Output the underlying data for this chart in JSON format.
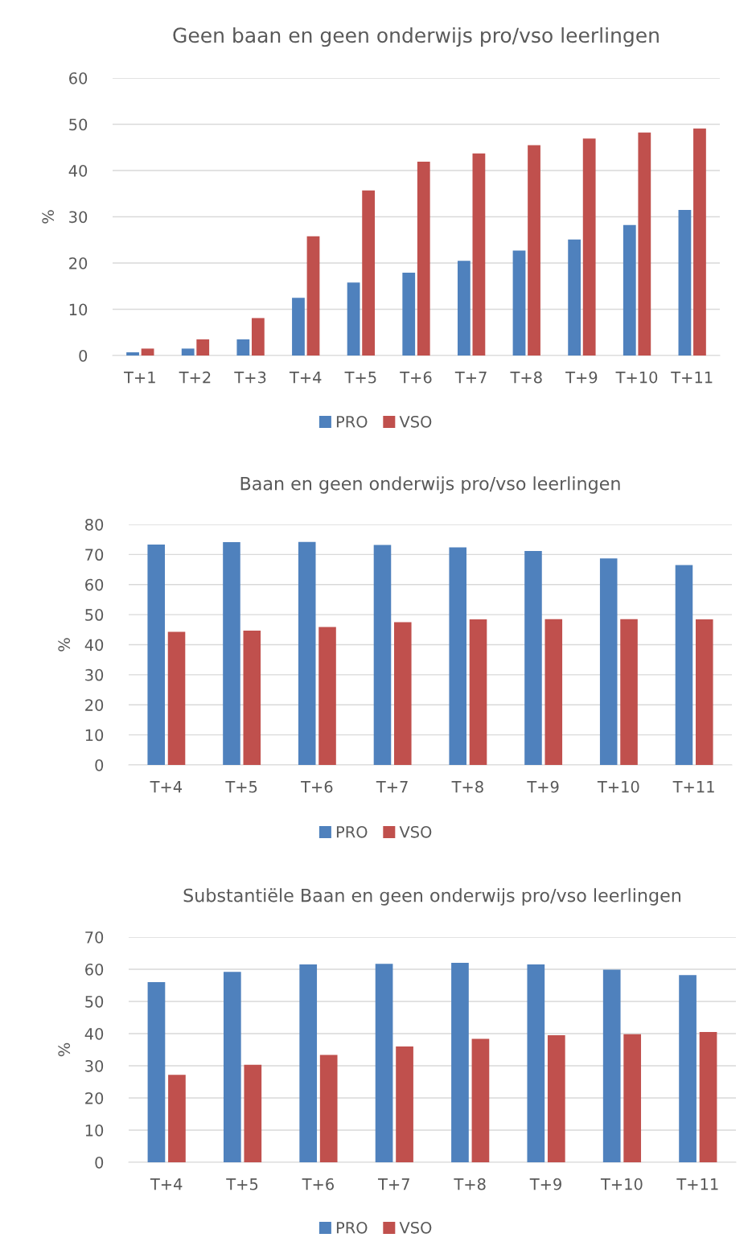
{
  "chart_data": [
    {
      "type": "bar",
      "title": "Geen baan en geen onderwijs pro/vso leerlingen",
      "ylabel": "%",
      "categories": [
        "T+1",
        "T+2",
        "T+3",
        "T+4",
        "T+5",
        "T+6",
        "T+7",
        "T+8",
        "T+9",
        "T+10",
        "T+11"
      ],
      "series": [
        {
          "name": "PRO",
          "color": "#4f81bd",
          "values": [
            0.7,
            1.5,
            3.5,
            12.5,
            15.8,
            17.9,
            20.5,
            22.7,
            25.1,
            28.2,
            31.5
          ]
        },
        {
          "name": "VSO",
          "color": "#c0504d",
          "values": [
            1.5,
            3.5,
            8.1,
            25.8,
            35.7,
            41.9,
            43.7,
            45.5,
            46.9,
            48.2,
            49.1
          ]
        }
      ],
      "ylim": [
        0,
        60
      ],
      "yticks": [
        0,
        10,
        20,
        30,
        40,
        50,
        60
      ],
      "grid": "y",
      "legend": "bottom"
    },
    {
      "type": "bar",
      "title": "Baan en geen onderwijs pro/vso leerlingen",
      "ylabel": "%",
      "categories": [
        "T+4",
        "T+5",
        "T+6",
        "T+7",
        "T+8",
        "T+9",
        "T+10",
        "T+11"
      ],
      "series": [
        {
          "name": "PRO",
          "color": "#4f81bd",
          "values": [
            73.3,
            74.1,
            74.2,
            73.2,
            72.4,
            71.2,
            68.7,
            66.5
          ]
        },
        {
          "name": "VSO",
          "color": "#c0504d",
          "values": [
            44.3,
            44.7,
            45.9,
            47.5,
            48.4,
            48.5,
            48.5,
            48.4
          ]
        }
      ],
      "ylim": [
        0,
        80
      ],
      "yticks": [
        0,
        10,
        20,
        30,
        40,
        50,
        60,
        70,
        80
      ],
      "grid": "y",
      "legend": "bottom"
    },
    {
      "type": "bar",
      "title": "Substantiële Baan en geen onderwijs pro/vso leerlingen",
      "ylabel": "%",
      "categories": [
        "T+4",
        "T+5",
        "T+6",
        "T+7",
        "T+8",
        "T+9",
        "T+10",
        "T+11"
      ],
      "series": [
        {
          "name": "PRO",
          "color": "#4f81bd",
          "values": [
            56.0,
            59.2,
            61.5,
            61.7,
            62.0,
            61.5,
            59.9,
            58.2
          ]
        },
        {
          "name": "VSO",
          "color": "#c0504d",
          "values": [
            27.2,
            30.3,
            33.4,
            36.0,
            38.4,
            39.5,
            39.8,
            40.5
          ]
        }
      ],
      "ylim": [
        0,
        70
      ],
      "yticks": [
        0,
        10,
        20,
        30,
        40,
        50,
        60,
        70
      ],
      "grid": "y",
      "legend": "bottom"
    }
  ]
}
